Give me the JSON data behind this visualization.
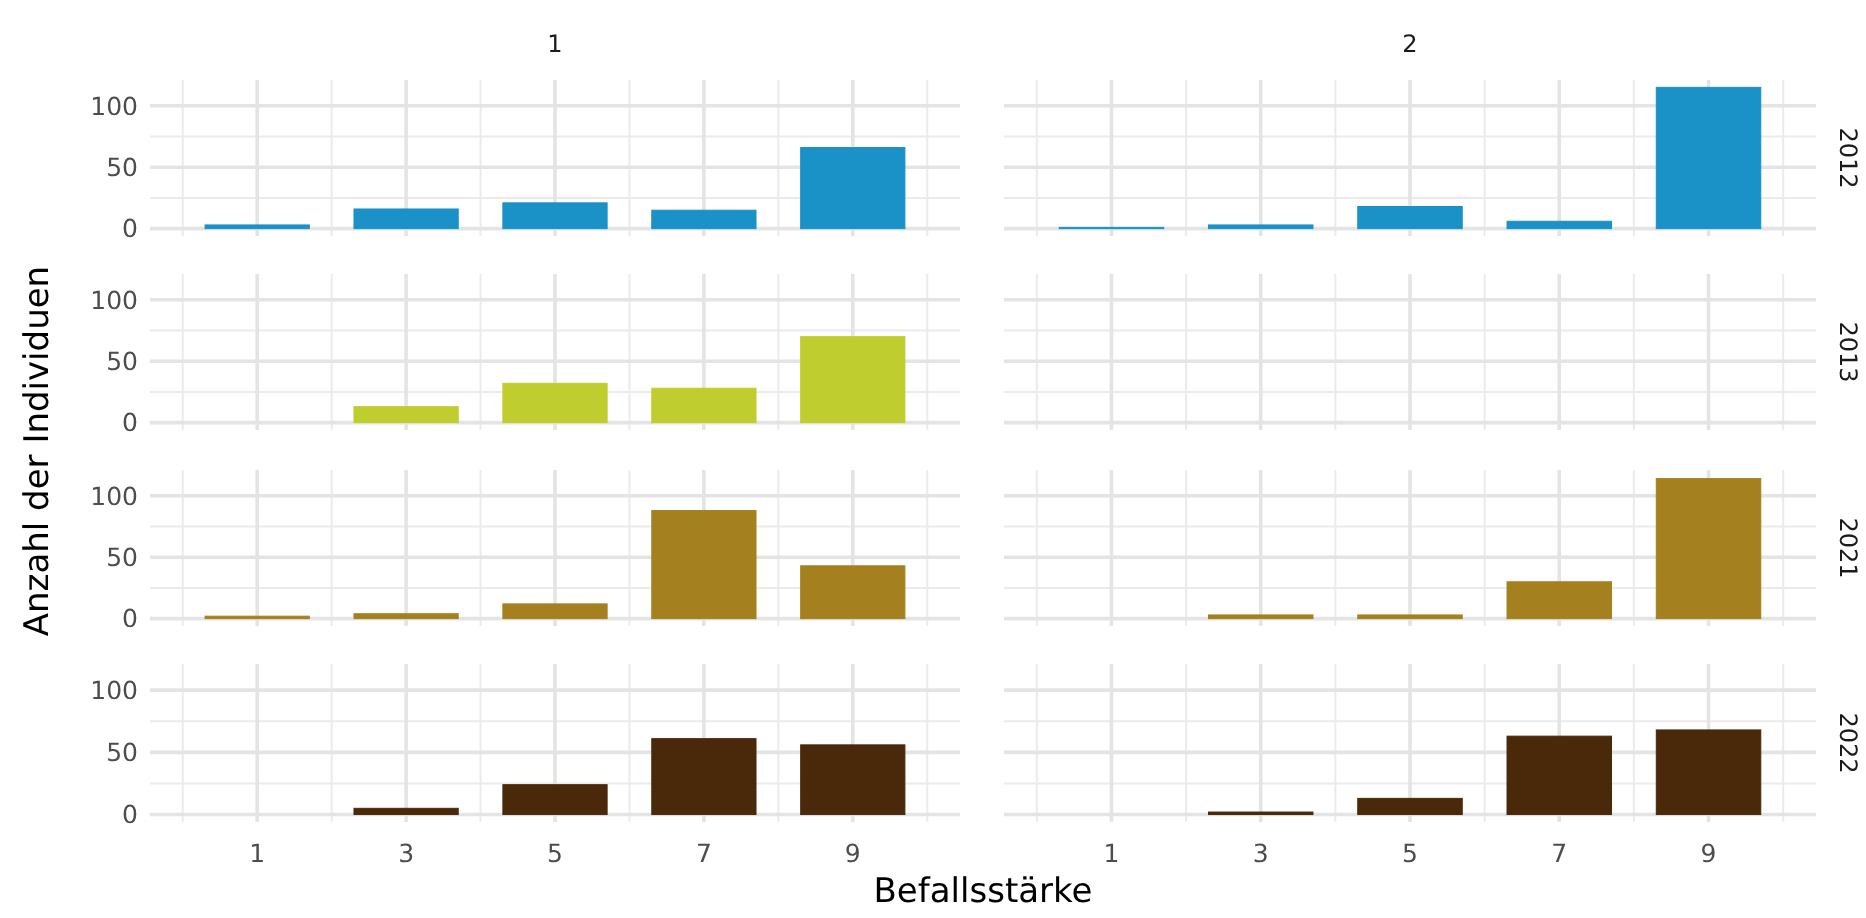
{
  "chart_data": [
    {
      "type": "bar",
      "title": "1",
      "categories": [
        "1",
        "3",
        "5",
        "7",
        "9"
      ],
      "series": [
        {
          "color": "#1a91c7",
          "values": [
            3,
            16,
            21,
            15,
            66
          ]
        }
      ],
      "ylim": [
        -6,
        121
      ],
      "yticks": [
        0,
        50,
        100
      ],
      "grid": true,
      "tick_labels": "y"
    },
    {
      "type": "bar",
      "title": "2",
      "y2label": "2012",
      "categories": [
        "1",
        "3",
        "5",
        "7",
        "9"
      ],
      "series": [
        {
          "color": "#1a91c7",
          "values": [
            1,
            3,
            18,
            6,
            115
          ]
        }
      ],
      "ylim": [
        -6,
        121
      ],
      "yticks": [
        0,
        50,
        100
      ],
      "grid": true,
      "tick_labels": false
    },
    {
      "type": "bar",
      "categories": [
        "1",
        "3",
        "5",
        "7",
        "9"
      ],
      "series": [
        {
          "color": "#bfcd2e",
          "values": [
            null,
            13,
            32,
            28,
            70
          ]
        }
      ],
      "ylim": [
        -6,
        121
      ],
      "yticks": [
        0,
        50,
        100
      ],
      "grid": true,
      "tick_labels": "y"
    },
    {
      "type": "bar",
      "y2label": "2013",
      "categories": [
        "1",
        "3",
        "5",
        "7",
        "9"
      ],
      "series": [
        {
          "color": "#bfcd2e",
          "values": [
            0,
            0,
            0,
            0,
            0
          ]
        }
      ],
      "ylim": [
        -6,
        121
      ],
      "yticks": [
        0,
        50,
        100
      ],
      "grid": true,
      "tick_labels": false
    },
    {
      "type": "bar",
      "ylabel": "Anzahl der Individuen",
      "categories": [
        "1",
        "3",
        "5",
        "7",
        "9"
      ],
      "series": [
        {
          "color": "#a5801f",
          "values": [
            2,
            4,
            12,
            88,
            43
          ]
        }
      ],
      "ylim": [
        -6,
        121
      ],
      "yticks": [
        0,
        50,
        100
      ],
      "grid": true,
      "tick_labels": "y"
    },
    {
      "type": "bar",
      "y2label": "2021",
      "categories": [
        "1",
        "3",
        "5",
        "7",
        "9"
      ],
      "series": [
        {
          "color": "#a5801f",
          "values": [
            null,
            3,
            3,
            30,
            114
          ]
        }
      ],
      "ylim": [
        -6,
        121
      ],
      "yticks": [
        0,
        50,
        100
      ],
      "grid": true,
      "tick_labels": false
    },
    {
      "type": "bar",
      "xlabel": "Befallsstärke",
      "categories": [
        "1",
        "3",
        "5",
        "7",
        "9"
      ],
      "series": [
        {
          "color": "#4a290b",
          "values": [
            null,
            5,
            24,
            61,
            56
          ]
        }
      ],
      "ylim": [
        -6,
        121
      ],
      "yticks": [
        0,
        50,
        100
      ],
      "grid": true
    },
    {
      "type": "bar",
      "y2label": "2022",
      "categories": [
        "1",
        "3",
        "5",
        "7",
        "9"
      ],
      "series": [
        {
          "color": "#4a290b",
          "values": [
            null,
            2,
            13,
            63,
            68
          ]
        }
      ],
      "ylim": [
        -6,
        121
      ],
      "yticks": [
        0,
        50,
        100
      ],
      "grid": true,
      "tick_labels": "x"
    }
  ]
}
